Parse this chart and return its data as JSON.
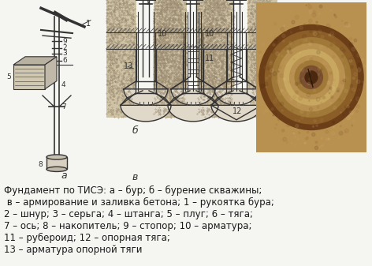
{
  "background_color": "#f5f5f2",
  "text_color": "#1a1a1a",
  "caption_lines": [
    "Фундамент по ТИСЭ: а – бур; б – бурение скважины;",
    " в – армирование и заливка бетона; 1 – рукоятка бура;",
    "2 – шнур; 3 – серьга; 4 – штанга; 5 – плуг; 6 – тяга;",
    "7 – ось; 8 – накопитель; 9 – стопор; 10 – арматура;",
    "11 – рубероид; 12 – опорная тяга;",
    "13 – арматура опорной тяги"
  ],
  "fig_width": 4.72,
  "fig_height": 3.37,
  "dpi": 100,
  "gray": "#555555",
  "darkgray": "#333333",
  "lightgray": "#cccccc",
  "soil_color": "#c8bca0",
  "photo_bg": "#b8924a",
  "photo_mid": "#8b5e2a",
  "photo_center": "#5a3010",
  "photo_outer": "#c8a050"
}
